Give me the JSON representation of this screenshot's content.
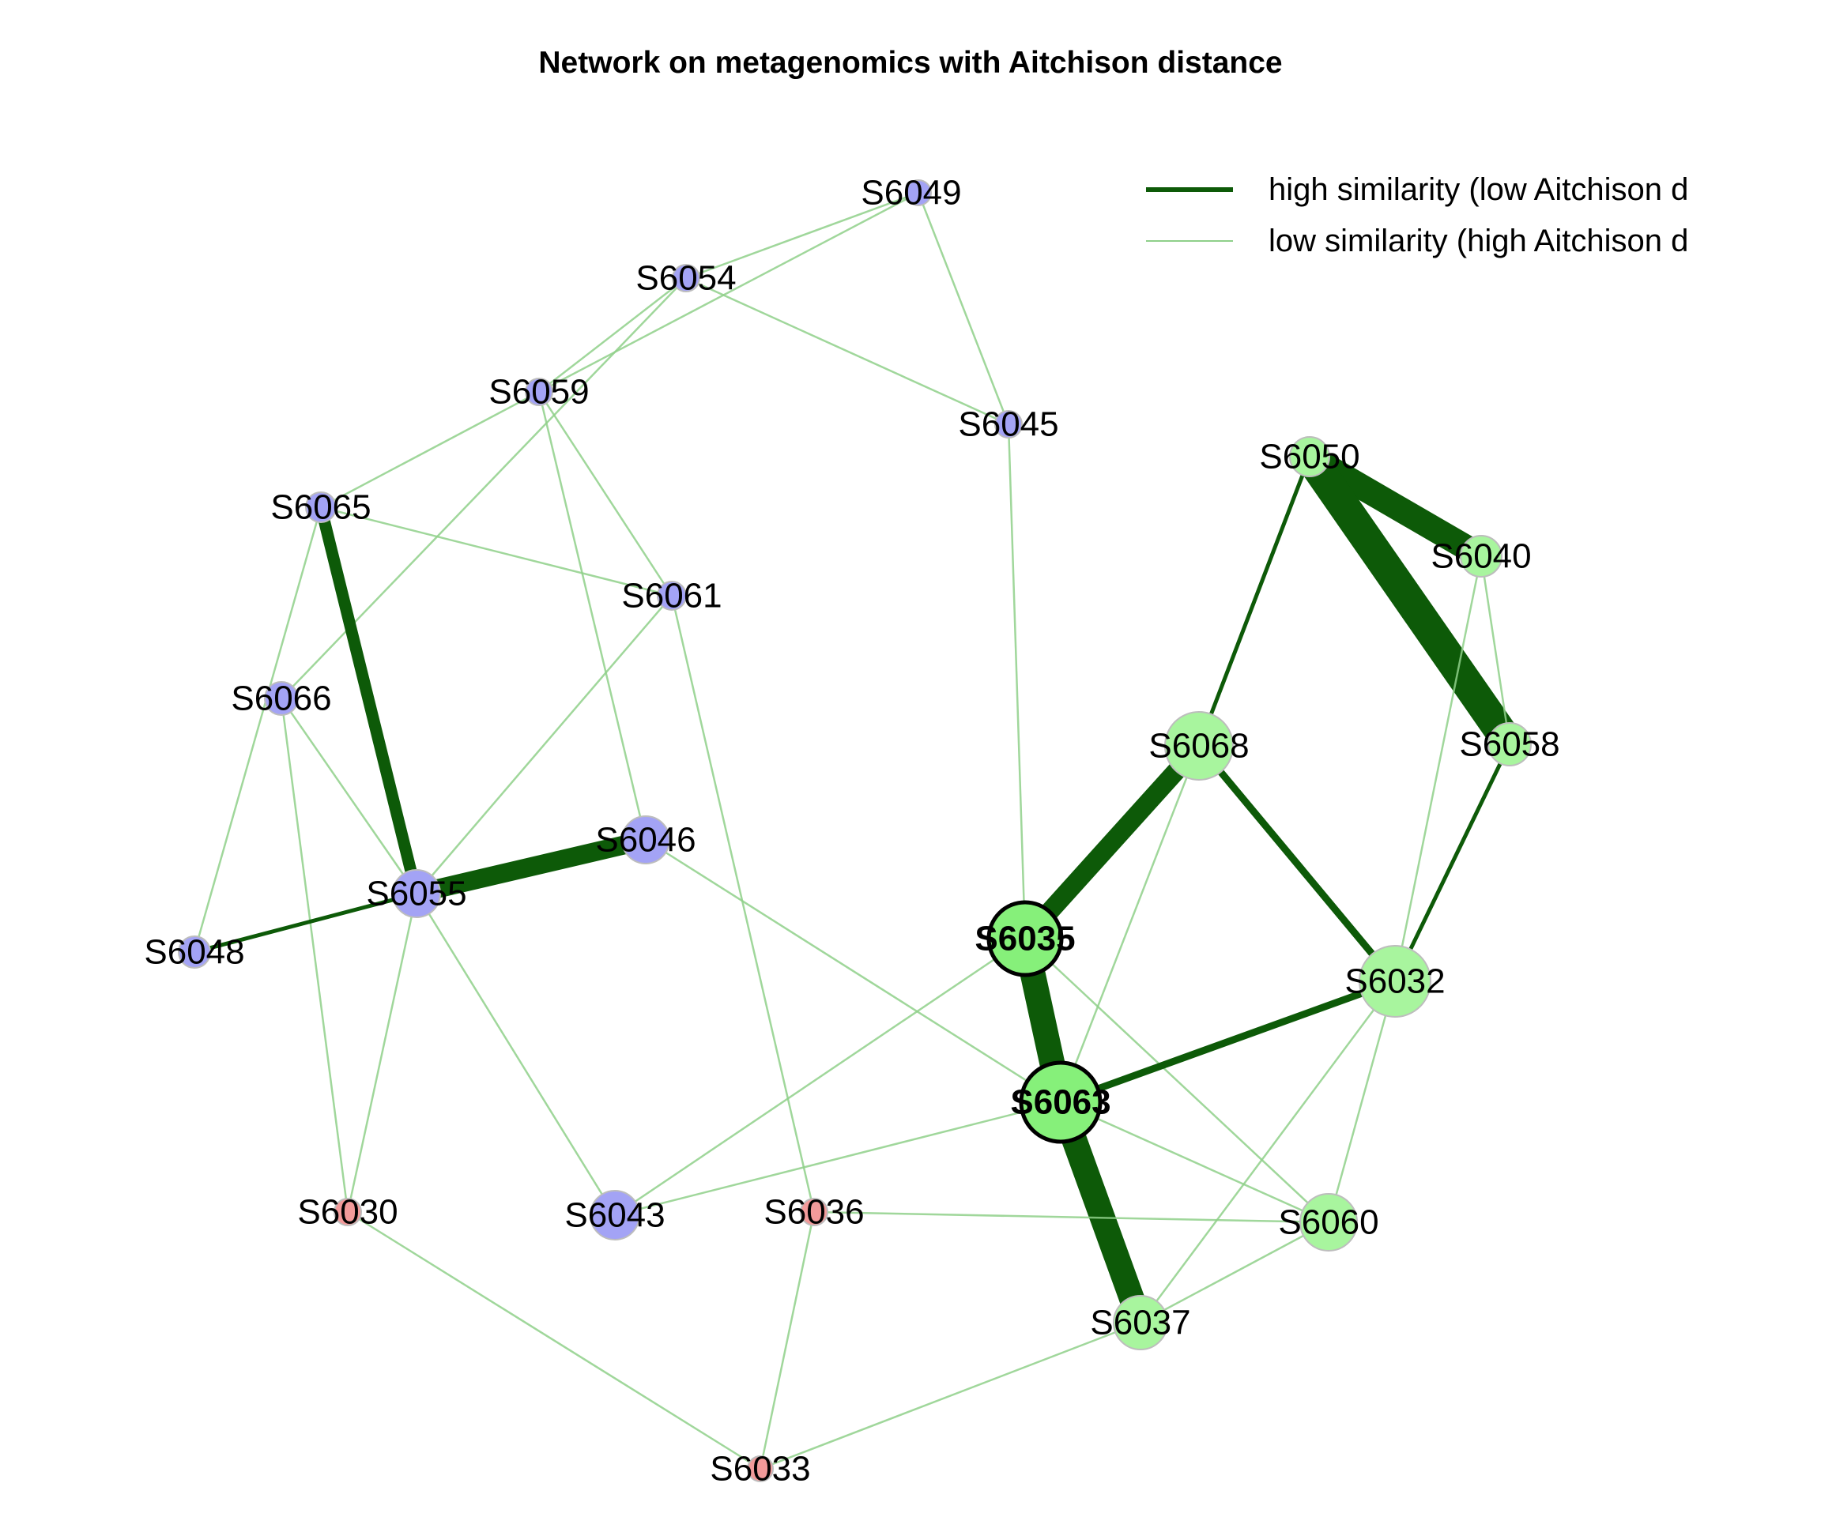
{
  "title": "Network on metagenomics with Aitchison distance",
  "legend": {
    "high": {
      "label": "high similarity (low Aitchison d",
      "color": "#0d5a08"
    },
    "low": {
      "label": "low similarity (high Aitchison d",
      "color": "#8fd08a"
    }
  },
  "colors": {
    "blue_group": "#a3a3f5",
    "red_group": "#f29a9a",
    "green_group": "#a8f59e",
    "hub": "#86f07a",
    "edge_strong": "#0d5a08",
    "edge_weak": "#8fd08a"
  },
  "nodes": [
    {
      "id": "S6049",
      "group": "blue"
    },
    {
      "id": "S6054",
      "group": "blue"
    },
    {
      "id": "S6059",
      "group": "blue"
    },
    {
      "id": "S6045",
      "group": "blue"
    },
    {
      "id": "S6065",
      "group": "blue"
    },
    {
      "id": "S6061",
      "group": "blue"
    },
    {
      "id": "S6066",
      "group": "blue"
    },
    {
      "id": "S6046",
      "group": "blue"
    },
    {
      "id": "S6055",
      "group": "blue"
    },
    {
      "id": "S6048",
      "group": "blue"
    },
    {
      "id": "S6030",
      "group": "red"
    },
    {
      "id": "S6043",
      "group": "blue"
    },
    {
      "id": "S6036",
      "group": "red"
    },
    {
      "id": "S6033",
      "group": "red"
    },
    {
      "id": "S6050",
      "group": "green"
    },
    {
      "id": "S6040",
      "group": "green"
    },
    {
      "id": "S6058",
      "group": "green"
    },
    {
      "id": "S6068",
      "group": "green"
    },
    {
      "id": "S6035",
      "group": "green",
      "hub": true
    },
    {
      "id": "S6032",
      "group": "green"
    },
    {
      "id": "S6063",
      "group": "green",
      "hub": true
    },
    {
      "id": "S6060",
      "group": "green"
    },
    {
      "id": "S6037",
      "group": "green"
    }
  ],
  "edges": [
    {
      "source": "S6049",
      "target": "S6054",
      "strength": "weak"
    },
    {
      "source": "S6049",
      "target": "S6059",
      "strength": "weak"
    },
    {
      "source": "S6049",
      "target": "S6045",
      "strength": "weak"
    },
    {
      "source": "S6054",
      "target": "S6059",
      "strength": "weak"
    },
    {
      "source": "S6054",
      "target": "S6045",
      "strength": "weak"
    },
    {
      "source": "S6054",
      "target": "S6066",
      "strength": "weak"
    },
    {
      "source": "S6059",
      "target": "S6065",
      "strength": "weak"
    },
    {
      "source": "S6059",
      "target": "S6061",
      "strength": "weak"
    },
    {
      "source": "S6059",
      "target": "S6046",
      "strength": "weak"
    },
    {
      "source": "S6065",
      "target": "S6061",
      "strength": "weak"
    },
    {
      "source": "S6065",
      "target": "S6055",
      "strength": "strong",
      "weight": 3
    },
    {
      "source": "S6065",
      "target": "S6048",
      "strength": "weak"
    },
    {
      "source": "S6066",
      "target": "S6055",
      "strength": "weak"
    },
    {
      "source": "S6066",
      "target": "S6030",
      "strength": "weak"
    },
    {
      "source": "S6061",
      "target": "S6055",
      "strength": "weak"
    },
    {
      "source": "S6061",
      "target": "S6036",
      "strength": "weak"
    },
    {
      "source": "S6046",
      "target": "S6055",
      "strength": "strong",
      "weight": 4
    },
    {
      "source": "S6046",
      "target": "S6063",
      "strength": "weak"
    },
    {
      "source": "S6055",
      "target": "S6048",
      "strength": "strong",
      "weight": 1
    },
    {
      "source": "S6055",
      "target": "S6030",
      "strength": "weak"
    },
    {
      "source": "S6055",
      "target": "S6043",
      "strength": "weak"
    },
    {
      "source": "S6045",
      "target": "S6035",
      "strength": "weak"
    },
    {
      "source": "S6050",
      "target": "S6040",
      "strength": "strong",
      "weight": 5
    },
    {
      "source": "S6050",
      "target": "S6058",
      "strength": "strong",
      "weight": 6
    },
    {
      "source": "S6050",
      "target": "S6068",
      "strength": "strong",
      "weight": 1
    },
    {
      "source": "S6040",
      "target": "S6058",
      "strength": "weak"
    },
    {
      "source": "S6040",
      "target": "S6032",
      "strength": "weak"
    },
    {
      "source": "S6058",
      "target": "S6032",
      "strength": "strong",
      "weight": 1
    },
    {
      "source": "S6068",
      "target": "S6035",
      "strength": "strong",
      "weight": 4
    },
    {
      "source": "S6068",
      "target": "S6032",
      "strength": "strong",
      "weight": 2
    },
    {
      "source": "S6068",
      "target": "S6063",
      "strength": "weak"
    },
    {
      "source": "S6035",
      "target": "S6063",
      "strength": "strong",
      "weight": 5
    },
    {
      "source": "S6035",
      "target": "S6043",
      "strength": "weak"
    },
    {
      "source": "S6035",
      "target": "S6060",
      "strength": "weak"
    },
    {
      "source": "S6063",
      "target": "S6032",
      "strength": "strong",
      "weight": 2
    },
    {
      "source": "S6063",
      "target": "S6037",
      "strength": "strong",
      "weight": 5
    },
    {
      "source": "S6063",
      "target": "S6060",
      "strength": "weak"
    },
    {
      "source": "S6063",
      "target": "S6043",
      "strength": "weak"
    },
    {
      "source": "S6032",
      "target": "S6060",
      "strength": "weak"
    },
    {
      "source": "S6032",
      "target": "S6037",
      "strength": "weak"
    },
    {
      "source": "S6060",
      "target": "S6037",
      "strength": "weak"
    },
    {
      "source": "S6036",
      "target": "S6060",
      "strength": "weak"
    },
    {
      "source": "S6036",
      "target": "S6033",
      "strength": "weak"
    },
    {
      "source": "S6030",
      "target": "S6033",
      "strength": "weak"
    },
    {
      "source": "S6033",
      "target": "S6037",
      "strength": "weak"
    }
  ]
}
